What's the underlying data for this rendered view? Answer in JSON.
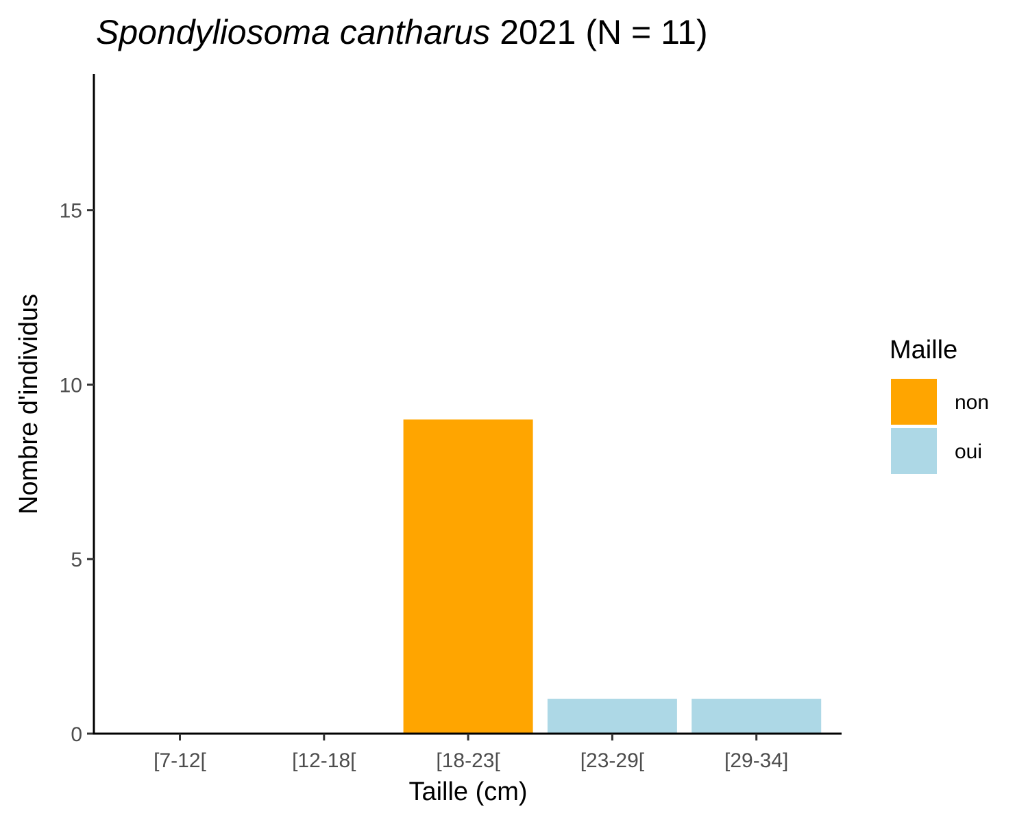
{
  "chart_data": {
    "type": "bar",
    "title_species": "Spondyliosoma cantharus",
    "title_rest": " 2021 (N = 11)",
    "xlabel": "Taille (cm)",
    "ylabel": "Nombre d'individus",
    "categories": [
      "[7-12[",
      "[12-18[",
      "[18-23[",
      "[23-29[",
      "[29-34]"
    ],
    "values": [
      0,
      0,
      9,
      1,
      1
    ],
    "fill": [
      "non",
      "non",
      "non",
      "oui",
      "oui"
    ],
    "ylim": [
      0,
      18.9
    ],
    "yticks": [
      0,
      5,
      10,
      15
    ],
    "legend": {
      "title": "Maille",
      "position": "right",
      "entries": [
        {
          "label": "non",
          "color": "#FFA500"
        },
        {
          "label": "oui",
          "color": "#ADD8E6"
        }
      ]
    },
    "grid": false
  }
}
